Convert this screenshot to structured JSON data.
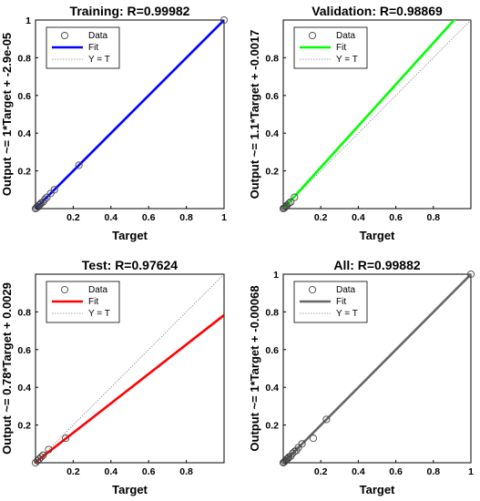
{
  "chart_data": [
    {
      "type": "scatter",
      "title": "Training: R=0.99982",
      "xlabel": "Target",
      "ylabel": "Output ~= 1*Target + -2.9e-05",
      "xlim": [
        0,
        1
      ],
      "ylim": [
        0,
        1
      ],
      "xticks": [
        "0.2",
        "0.4",
        "0.6",
        "0.8",
        "1"
      ],
      "yticks": [
        "0.2",
        "0.4",
        "0.6",
        "0.8",
        "1"
      ],
      "grid": false,
      "legend_position": "top-left",
      "legend": [
        "Data",
        "Fit",
        "Y = T"
      ],
      "fit_color": "#0000ff",
      "fit": {
        "slope": 1,
        "intercept": -2.9e-05
      },
      "points": [
        [
          0.0,
          0.0
        ],
        [
          0.005,
          0.004
        ],
        [
          0.01,
          0.012
        ],
        [
          0.015,
          0.01
        ],
        [
          0.02,
          0.02
        ],
        [
          0.025,
          0.022
        ],
        [
          0.03,
          0.03
        ],
        [
          0.04,
          0.035
        ],
        [
          0.05,
          0.05
        ],
        [
          0.06,
          0.06
        ],
        [
          0.08,
          0.08
        ],
        [
          0.1,
          0.1
        ],
        [
          0.23,
          0.23
        ],
        [
          1.0,
          1.0
        ]
      ]
    },
    {
      "type": "scatter",
      "title": "Validation: R=0.98869",
      "xlabel": "Target",
      "ylabel": "Output ~= 1.1*Target + -0.0017",
      "xlim": [
        0,
        1
      ],
      "ylim": [
        0,
        1
      ],
      "xticks": [
        "0.2",
        "0.4",
        "0.6",
        "0.8"
      ],
      "yticks": [
        "0.2",
        "0.4",
        "0.6",
        "0.8"
      ],
      "grid": false,
      "legend_position": "top-left",
      "legend": [
        "Data",
        "Fit",
        "Y = T"
      ],
      "fit_color": "#00ff00",
      "fit": {
        "slope": 1.1,
        "intercept": -0.0017
      },
      "points": [
        [
          0.0,
          0.0
        ],
        [
          0.005,
          0.003
        ],
        [
          0.01,
          0.008
        ],
        [
          0.015,
          0.012
        ],
        [
          0.02,
          0.018
        ],
        [
          0.03,
          0.028
        ],
        [
          0.04,
          0.035
        ],
        [
          0.06,
          0.06
        ]
      ]
    },
    {
      "type": "scatter",
      "title": "Test: R=0.97624",
      "xlabel": "Target",
      "ylabel": "Output ~= 0.78*Target + 0.0029",
      "xlim": [
        0,
        1
      ],
      "ylim": [
        0,
        1
      ],
      "xticks": [
        "0.2",
        "0.4",
        "0.6",
        "0.8"
      ],
      "yticks": [
        "0.2",
        "0.4",
        "0.6",
        "0.8"
      ],
      "grid": false,
      "legend_position": "top-left",
      "legend": [
        "Data",
        "Fit",
        "Y = T"
      ],
      "fit_color": "#ff0000",
      "fit": {
        "slope": 0.78,
        "intercept": 0.0029
      },
      "points": [
        [
          0.0,
          0.0
        ],
        [
          0.01,
          0.01
        ],
        [
          0.02,
          0.02
        ],
        [
          0.03,
          0.03
        ],
        [
          0.04,
          0.04
        ],
        [
          0.07,
          0.07
        ],
        [
          0.16,
          0.13
        ]
      ]
    },
    {
      "type": "scatter",
      "title": "All: R=0.99882",
      "xlabel": "Target",
      "ylabel": "Output ~= 1*Target + -0.00068",
      "xlim": [
        0,
        1
      ],
      "ylim": [
        0,
        1
      ],
      "xticks": [
        "0.2",
        "0.4",
        "0.6",
        "0.8",
        "1"
      ],
      "yticks": [
        "0.2",
        "0.4",
        "0.6",
        "0.8",
        "1"
      ],
      "grid": false,
      "legend_position": "top-left",
      "legend": [
        "Data",
        "Fit",
        "Y = T"
      ],
      "fit_color": "#666666",
      "fit": {
        "slope": 1,
        "intercept": -0.00068
      },
      "points": [
        [
          0.0,
          0.0
        ],
        [
          0.005,
          0.004
        ],
        [
          0.01,
          0.01
        ],
        [
          0.015,
          0.012
        ],
        [
          0.02,
          0.02
        ],
        [
          0.025,
          0.022
        ],
        [
          0.03,
          0.03
        ],
        [
          0.04,
          0.035
        ],
        [
          0.05,
          0.05
        ],
        [
          0.06,
          0.06
        ],
        [
          0.07,
          0.065
        ],
        [
          0.08,
          0.08
        ],
        [
          0.1,
          0.1
        ],
        [
          0.16,
          0.13
        ],
        [
          0.23,
          0.23
        ],
        [
          1.0,
          1.0
        ]
      ]
    }
  ]
}
